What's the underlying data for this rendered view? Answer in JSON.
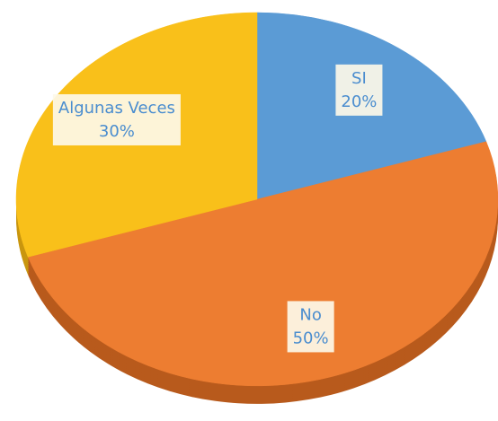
{
  "chart_data": {
    "type": "pie",
    "categories": [
      "SI",
      "No",
      "Algunas Veces"
    ],
    "values": [
      20,
      50,
      30
    ],
    "value_labels": [
      "20%",
      "50%",
      "30%"
    ],
    "colors": [
      "#5b9bd5",
      "#ed7d31",
      "#f9c01a"
    ],
    "side_colors": [
      "#3f78ad",
      "#b85a1c",
      "#c9960f"
    ]
  }
}
